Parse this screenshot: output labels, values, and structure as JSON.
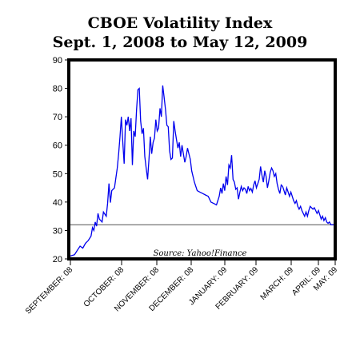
{
  "chart_data": {
    "type": "line",
    "title": "CBOE Volatility Index",
    "subtitle": "Sept. 1, 2008 to May 12, 2009",
    "source": "Source: Yahoo!Finance",
    "xlabel": "",
    "ylabel": "",
    "ylim": [
      20,
      90
    ],
    "yticks": [
      20,
      30,
      40,
      50,
      60,
      70,
      80,
      90
    ],
    "xticks": [
      "SEPTEMBER: 08",
      "OCTOBER: 08",
      "NOVEMBER: 08",
      "DECEMBER: 08",
      "JANUARY: 09",
      "FEBRUARY: 09",
      "MARCH: 09",
      "APRIL: 09",
      "MAY: 09"
    ],
    "grid": false,
    "reference_line": 32,
    "colors": {
      "series": "#0000ee",
      "frame": "#000000",
      "reference": "#666666"
    },
    "series": [
      {
        "values": [
          [
            0,
            21.0
          ],
          [
            3,
            21.5
          ],
          [
            5,
            23.0
          ],
          [
            7,
            24.5
          ],
          [
            9,
            23.8
          ],
          [
            11,
            25.5
          ],
          [
            13,
            26.5
          ],
          [
            15,
            28.0
          ],
          [
            16,
            31.0
          ],
          [
            17,
            30.0
          ],
          [
            18,
            33.0
          ],
          [
            19,
            31.5
          ],
          [
            20,
            36.0
          ],
          [
            21,
            34.0
          ],
          [
            23,
            33.0
          ],
          [
            24,
            36.5
          ],
          [
            26,
            35.0
          ],
          [
            27,
            39.5
          ],
          [
            28,
            46.5
          ],
          [
            29,
            39.8
          ],
          [
            30,
            44.0
          ],
          [
            32,
            45.0
          ],
          [
            34,
            52.0
          ],
          [
            35,
            57.0
          ],
          [
            36,
            63.0
          ],
          [
            37,
            70.0
          ],
          [
            38,
            61.0
          ],
          [
            39,
            53.5
          ],
          [
            40,
            69.0
          ],
          [
            41,
            67.0
          ],
          [
            42,
            70.0
          ],
          [
            43,
            65.0
          ],
          [
            44,
            69.5
          ],
          [
            45,
            53.0
          ],
          [
            46,
            65.0
          ],
          [
            47,
            63.0
          ],
          [
            48,
            72.5
          ],
          [
            49,
            79.5
          ],
          [
            50,
            80.0
          ],
          [
            51,
            68.5
          ],
          [
            52,
            64.0
          ],
          [
            53,
            66.0
          ],
          [
            54,
            56.0
          ],
          [
            55,
            52.0
          ],
          [
            56,
            48.0
          ],
          [
            57,
            55.0
          ],
          [
            58,
            63.0
          ],
          [
            59,
            57.0
          ],
          [
            60,
            61.0
          ],
          [
            61,
            62.5
          ],
          [
            62,
            69.0
          ],
          [
            63,
            65.0
          ],
          [
            64,
            66.0
          ],
          [
            65,
            73.0
          ],
          [
            66,
            70.0
          ],
          [
            67,
            81.0
          ],
          [
            68,
            77.0
          ],
          [
            69,
            72.5
          ],
          [
            70,
            67.0
          ],
          [
            71,
            66.5
          ],
          [
            72,
            58.0
          ],
          [
            73,
            55.0
          ],
          [
            74,
            55.5
          ],
          [
            75,
            68.5
          ],
          [
            76,
            65.0
          ],
          [
            77,
            62.0
          ],
          [
            78,
            59.0
          ],
          [
            79,
            61.0
          ],
          [
            80,
            56.0
          ],
          [
            81,
            60.0
          ],
          [
            82,
            57.0
          ],
          [
            83,
            54.0
          ],
          [
            84,
            56.0
          ],
          [
            85,
            59.0
          ],
          [
            86,
            57.0
          ],
          [
            87,
            55.0
          ],
          [
            88,
            51.0
          ],
          [
            90,
            47.0
          ],
          [
            92,
            44.0
          ],
          [
            94,
            43.5
          ],
          [
            96,
            43.0
          ],
          [
            98,
            42.5
          ],
          [
            100,
            42.0
          ],
          [
            102,
            40.0
          ],
          [
            104,
            39.5
          ],
          [
            106,
            39.0
          ],
          [
            108,
            42.0
          ],
          [
            109,
            45.0
          ],
          [
            110,
            43.0
          ],
          [
            111,
            46.5
          ],
          [
            112,
            44.0
          ],
          [
            113,
            49.0
          ],
          [
            114,
            46.0
          ],
          [
            115,
            53.0
          ],
          [
            116,
            52.0
          ],
          [
            117,
            56.5
          ],
          [
            118,
            48.0
          ],
          [
            119,
            47.0
          ],
          [
            120,
            44.5
          ],
          [
            121,
            45.0
          ],
          [
            122,
            41.0
          ],
          [
            123,
            43.5
          ],
          [
            124,
            45.5
          ],
          [
            125,
            44.0
          ],
          [
            126,
            45.0
          ],
          [
            127,
            44.5
          ],
          [
            128,
            43.0
          ],
          [
            129,
            45.5
          ],
          [
            130,
            44.0
          ],
          [
            131,
            44.8
          ],
          [
            132,
            43.5
          ],
          [
            133,
            46.0
          ],
          [
            134,
            47.5
          ],
          [
            135,
            45.0
          ],
          [
            136,
            46.5
          ],
          [
            137,
            48.0
          ],
          [
            138,
            52.5
          ],
          [
            139,
            49.5
          ],
          [
            140,
            47.0
          ],
          [
            141,
            51.0
          ],
          [
            142,
            49.0
          ],
          [
            143,
            45.0
          ],
          [
            144,
            47.5
          ],
          [
            145,
            50.5
          ],
          [
            146,
            52.0
          ],
          [
            147,
            51.0
          ],
          [
            148,
            49.0
          ],
          [
            149,
            50.0
          ],
          [
            150,
            46.5
          ],
          [
            151,
            44.5
          ],
          [
            152,
            43.0
          ],
          [
            153,
            46.0
          ],
          [
            154,
            45.5
          ],
          [
            155,
            44.0
          ],
          [
            156,
            42.5
          ],
          [
            157,
            45.0
          ],
          [
            158,
            43.5
          ],
          [
            159,
            42.0
          ],
          [
            160,
            43.5
          ],
          [
            161,
            42.0
          ],
          [
            162,
            40.5
          ],
          [
            163,
            39.5
          ],
          [
            164,
            40.5
          ],
          [
            165,
            38.5
          ],
          [
            166,
            37.5
          ],
          [
            167,
            38.5
          ],
          [
            168,
            37.0
          ],
          [
            169,
            36.0
          ],
          [
            170,
            35.0
          ],
          [
            171,
            36.5
          ],
          [
            172,
            35.0
          ],
          [
            173,
            37.0
          ],
          [
            174,
            38.5
          ],
          [
            175,
            38.0
          ],
          [
            176,
            37.5
          ],
          [
            177,
            38.0
          ],
          [
            178,
            37.0
          ],
          [
            179,
            36.0
          ],
          [
            180,
            37.0
          ],
          [
            181,
            35.5
          ],
          [
            182,
            34.0
          ],
          [
            183,
            35.0
          ],
          [
            184,
            33.5
          ],
          [
            185,
            34.5
          ],
          [
            186,
            33.0
          ],
          [
            187,
            32.5
          ],
          [
            188,
            33.0
          ],
          [
            189,
            32.0
          ],
          [
            191,
            32.0
          ]
        ]
      }
    ]
  }
}
